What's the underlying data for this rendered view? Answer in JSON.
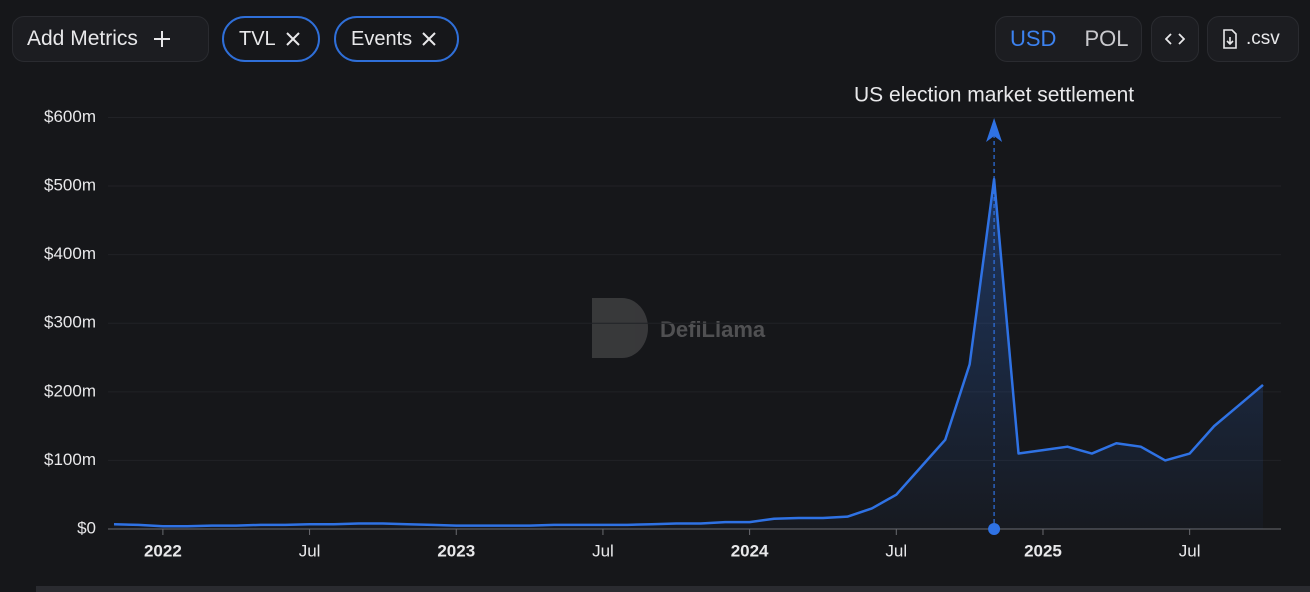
{
  "toolbar": {
    "add_metrics": "Add Metrics",
    "chips": [
      "TVL",
      "Events"
    ],
    "currencies": [
      "USD",
      "POL"
    ],
    "csv": ".csv"
  },
  "watermark": "DefiLlama",
  "chart_data": {
    "type": "area",
    "color": "#2f72e4",
    "x": [
      "2021-11",
      "2021-12",
      "2022-01",
      "2022-02",
      "2022-03",
      "2022-04",
      "2022-05",
      "2022-06",
      "2022-07",
      "2022-08",
      "2022-09",
      "2022-10",
      "2022-11",
      "2022-12",
      "2023-01",
      "2023-02",
      "2023-03",
      "2023-04",
      "2023-05",
      "2023-06",
      "2023-07",
      "2023-08",
      "2023-09",
      "2023-10",
      "2023-11",
      "2023-12",
      "2024-01",
      "2024-02",
      "2024-03",
      "2024-04",
      "2024-05",
      "2024-06",
      "2024-07",
      "2024-08",
      "2024-09",
      "2024-10",
      "2024-11",
      "2024-12",
      "2025-01",
      "2025-02",
      "2025-03",
      "2025-04",
      "2025-05",
      "2025-06",
      "2025-07",
      "2025-08",
      "2025-09",
      "2025-10"
    ],
    "values": [
      7,
      6,
      4,
      4,
      5,
      5,
      6,
      6,
      7,
      7,
      8,
      8,
      7,
      6,
      5,
      5,
      5,
      5,
      6,
      6,
      6,
      6,
      7,
      8,
      8,
      10,
      10,
      15,
      16,
      16,
      18,
      30,
      50,
      90,
      130,
      240,
      510,
      110,
      115,
      120,
      110,
      125,
      120,
      100,
      110,
      150,
      180,
      210
    ],
    "xlim": [
      "2021-11",
      "2025-10"
    ],
    "xticks": [
      {
        "value": "2022-01",
        "label": "2022"
      },
      {
        "value": "2022-07",
        "label": "Jul"
      },
      {
        "value": "2023-01",
        "label": "2023"
      },
      {
        "value": "2023-07",
        "label": "Jul"
      },
      {
        "value": "2024-01",
        "label": "2024"
      },
      {
        "value": "2024-07",
        "label": "Jul"
      },
      {
        "value": "2025-01",
        "label": "2025"
      },
      {
        "value": "2025-07",
        "label": "Jul"
      }
    ],
    "ylim": [
      0,
      640
    ],
    "yticks": [
      {
        "value": 0,
        "label": "$0"
      },
      {
        "value": 100,
        "label": "$100m"
      },
      {
        "value": 200,
        "label": "$200m"
      },
      {
        "value": 300,
        "label": "$300m"
      },
      {
        "value": 400,
        "label": "$400m"
      },
      {
        "value": 500,
        "label": "$500m"
      },
      {
        "value": 600,
        "label": "$600m"
      }
    ],
    "grid": true,
    "events": [
      {
        "x": "2024-11",
        "label": "US election market settlement"
      }
    ]
  }
}
